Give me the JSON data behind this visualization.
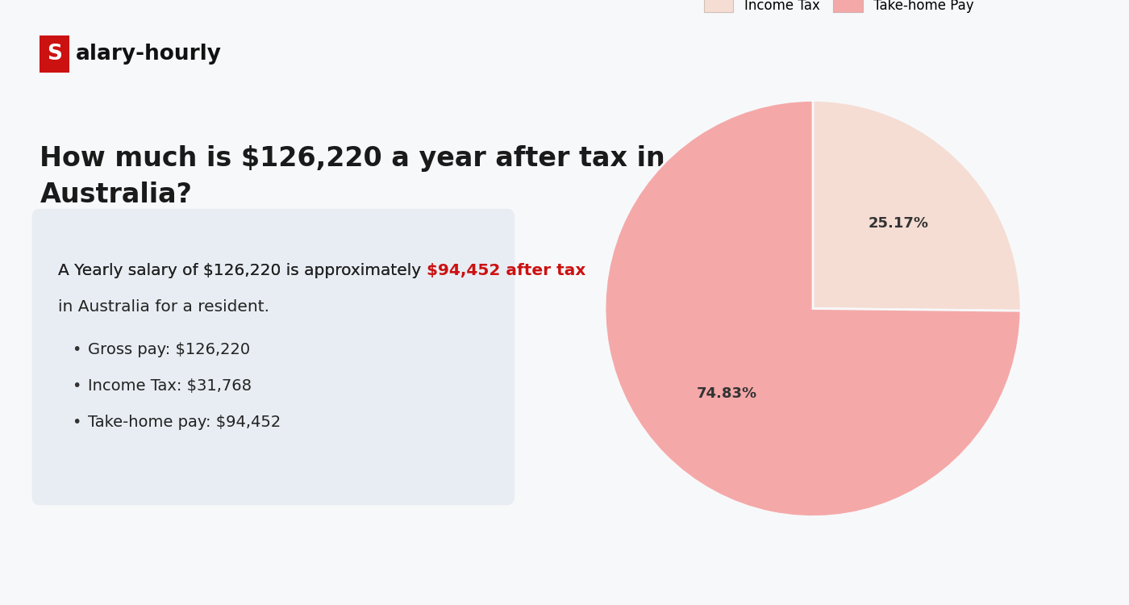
{
  "page_bg": "#f7f8fa",
  "logo_s_bg": "#cc1111",
  "logo_s_text": "S",
  "logo_rest": "alary-hourly",
  "main_title": "How much is $126,220 a year after tax in\nAustralia?",
  "box_bg": "#e8edf3",
  "summary_text_normal": "A Yearly salary of $126,220 is approximately ",
  "summary_text_highlight": "$94,452 after tax",
  "summary_text_end": "in Australia for a resident.",
  "bullet_items": [
    "Gross pay: $126,220",
    "Income Tax: $31,768",
    "Take-home pay: $94,452"
  ],
  "pie_values": [
    25.17,
    74.83
  ],
  "pie_labels": [
    "Income Tax",
    "Take-home Pay"
  ],
  "pie_colors": [
    "#f5ddd4",
    "#f5a8a8"
  ],
  "pie_pct_labels": [
    "25.17%",
    "74.83%"
  ],
  "legend_income_tax_color": "#f5ddd4",
  "legend_take_home_color": "#f5a8a8",
  "title_fontsize": 24,
  "summary_fontsize": 14.5,
  "bullet_fontsize": 14,
  "logo_fontsize": 19
}
